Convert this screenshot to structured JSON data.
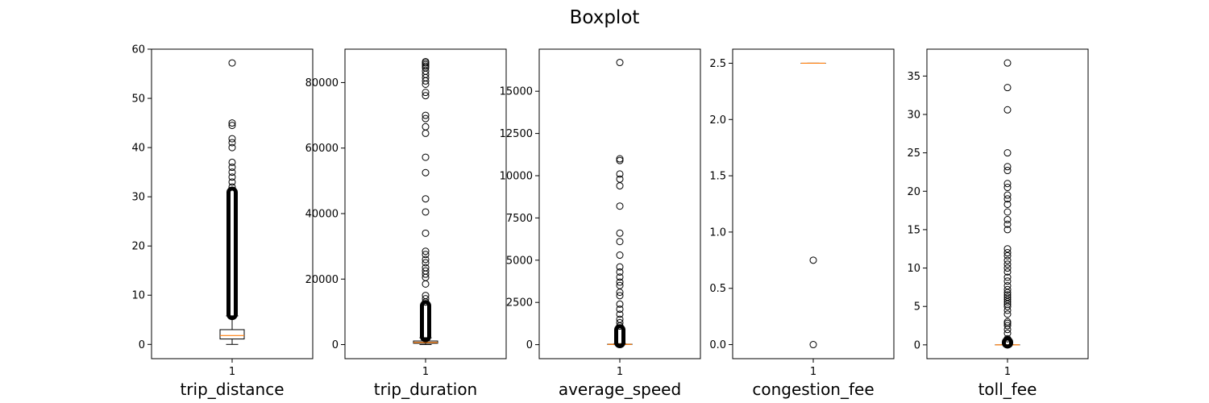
{
  "figure": {
    "title": "Boxplot"
  },
  "chart_data": [
    {
      "type": "box",
      "xlabel": "trip_distance",
      "categories": [
        "1"
      ],
      "ylim": [
        -2.9,
        60.0
      ],
      "yticks": [
        0,
        10,
        20,
        30,
        40,
        50,
        60
      ],
      "ytick_labels": [
        "0",
        "10",
        "20",
        "30",
        "40",
        "50",
        "60"
      ],
      "box": {
        "whisker_low": 0,
        "q1": 1.1,
        "median": 1.8,
        "q3": 3.0,
        "whisker_high": 5.8
      },
      "outlier_band": [
        6.0,
        31.0
      ],
      "outliers": [
        32,
        33,
        34,
        35,
        36,
        37,
        40,
        41,
        41.8,
        44.5,
        45,
        57.2
      ]
    },
    {
      "type": "box",
      "xlabel": "trip_duration",
      "categories": [
        "1"
      ],
      "ylim": [
        -4300,
        90200
      ],
      "yticks": [
        0,
        20000,
        40000,
        60000,
        80000
      ],
      "ytick_labels": [
        "0",
        "20000",
        "40000",
        "60000",
        "80000"
      ],
      "box": {
        "whisker_low": 0,
        "q1": 400,
        "median": 650,
        "q3": 1100,
        "whisker_high": 2100
      },
      "outlier_band": [
        2300,
        12000
      ],
      "outliers": [
        13000,
        14000,
        15000,
        18500,
        20500,
        21500,
        22500,
        23500,
        25000,
        26000,
        27500,
        28500,
        34000,
        40500,
        44500,
        52500,
        57200,
        64500,
        66500,
        69000,
        70000,
        76000,
        77000,
        79500,
        80500,
        81500,
        82500,
        83500,
        84500,
        85000,
        85500,
        86000,
        86400
      ]
    },
    {
      "type": "box",
      "xlabel": "average_speed",
      "categories": [
        "1"
      ],
      "ylim": [
        -830,
        17490
      ],
      "yticks": [
        0,
        2500,
        5000,
        7500,
        10000,
        12500,
        15000
      ],
      "ytick_labels": [
        "0",
        "2500",
        "5000",
        "7500",
        "10000",
        "12500",
        "15000"
      ],
      "box": {
        "whisker_low": 0,
        "q1": 10,
        "median": 18,
        "q3": 30,
        "whisker_high": 60
      },
      "outlier_band": [
        100,
        900
      ],
      "outliers": [
        1100,
        1300,
        1500,
        1800,
        2100,
        2400,
        2900,
        3100,
        3500,
        3700,
        4000,
        4300,
        4600,
        5300,
        6100,
        6600,
        8200,
        9400,
        9800,
        10100,
        10900,
        11000,
        16700
      ]
    },
    {
      "type": "box",
      "xlabel": "congestion_fee",
      "categories": [
        "1"
      ],
      "ylim": [
        -0.125,
        2.625
      ],
      "yticks": [
        0,
        0.5,
        1.0,
        1.5,
        2.0,
        2.5
      ],
      "ytick_labels": [
        "0.0",
        "0.5",
        "1.0",
        "1.5",
        "2.0",
        "2.5"
      ],
      "box": {
        "whisker_low": 2.5,
        "q1": 2.5,
        "median": 2.5,
        "q3": 2.5,
        "whisker_high": 2.5
      },
      "outlier_band": [
        0.0,
        0.0
      ],
      "outliers": [
        0.0,
        0.75
      ]
    },
    {
      "type": "box",
      "xlabel": "toll_fee",
      "categories": [
        "1"
      ],
      "ylim": [
        -1.8,
        38.5
      ],
      "yticks": [
        0,
        5,
        10,
        15,
        20,
        25,
        30,
        35
      ],
      "ytick_labels": [
        "0",
        "5",
        "10",
        "15",
        "20",
        "25",
        "30",
        "35"
      ],
      "box": {
        "whisker_low": 0,
        "q1": 0,
        "median": 0,
        "q3": 0,
        "whisker_high": 0
      },
      "outlier_band": [
        0.2,
        0.4
      ],
      "outliers": [
        0.8,
        1.5,
        2.0,
        2.5,
        2.8,
        3.0,
        4.0,
        4.5,
        5.0,
        5.3,
        5.6,
        5.9,
        6.2,
        6.5,
        6.8,
        7.2,
        7.7,
        8.3,
        8.8,
        9.5,
        10.0,
        10.5,
        11.0,
        11.6,
        12.0,
        12.5,
        15.0,
        15.7,
        16.3,
        17.3,
        18.3,
        19.0,
        19.5,
        20.5,
        21.0,
        22.7,
        23.2,
        25.0,
        30.6,
        33.5,
        36.7
      ]
    }
  ]
}
